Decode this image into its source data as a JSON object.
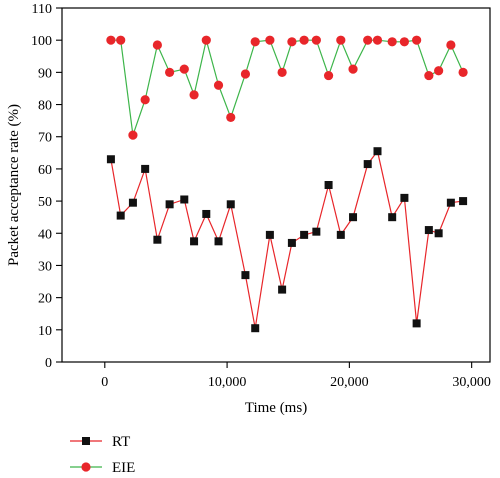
{
  "chart_data": {
    "type": "line",
    "xlabel": "Time (ms)",
    "ylabel": "Packet acceptance rate (%)",
    "xlim": [
      -3500,
      31500
    ],
    "ylim": [
      0,
      110
    ],
    "xticks": [
      0,
      10000,
      20000,
      30000
    ],
    "xtick_labels": [
      "0",
      "10,000",
      "20,000",
      "30,000"
    ],
    "yticks": [
      0,
      10,
      20,
      30,
      40,
      50,
      60,
      70,
      80,
      90,
      100,
      110
    ],
    "ytick_labels": [
      "0",
      "10",
      "20",
      "30",
      "40",
      "50",
      "60",
      "70",
      "80",
      "90",
      "100",
      "110"
    ],
    "grid": false,
    "legend_position": "bottom-left, below plot",
    "series": [
      {
        "name": "RT",
        "color": "#e8262a",
        "marker": "square",
        "marker_color": "#111111",
        "x": [
          500,
          1300,
          2300,
          3300,
          4300,
          5300,
          6500,
          7300,
          8300,
          9300,
          10300,
          11500,
          12300,
          13500,
          14500,
          15300,
          16300,
          17300,
          18300,
          19300,
          20300,
          21500,
          22300,
          23500,
          24500,
          25500,
          26500,
          27300,
          28300,
          29300
        ],
        "values": [
          63,
          45.5,
          49.5,
          60,
          38,
          49,
          50.5,
          37.5,
          46,
          37.5,
          49,
          27,
          10.5,
          39.5,
          22.5,
          37,
          39.5,
          40.5,
          55,
          39.5,
          45,
          61.5,
          65.5,
          45,
          51,
          12,
          41,
          40,
          49.5,
          50
        ]
      },
      {
        "name": "EIE",
        "color": "#3db54a",
        "marker": "circle",
        "marker_color": "#e8262a",
        "x": [
          500,
          1300,
          2300,
          3300,
          4300,
          5300,
          6500,
          7300,
          8300,
          9300,
          10300,
          11500,
          12300,
          13500,
          14500,
          15300,
          16300,
          17300,
          18300,
          19300,
          20300,
          21500,
          22300,
          23500,
          24500,
          25500,
          26500,
          27300,
          28300,
          29300
        ],
        "values": [
          100,
          100,
          70.5,
          81.5,
          98.5,
          90,
          91,
          83,
          100,
          86,
          76,
          89.5,
          99.5,
          100,
          90,
          99.5,
          100,
          100,
          89,
          100,
          91,
          100,
          100,
          99.5,
          99.5,
          100,
          89,
          90.5,
          98.5,
          90
        ]
      }
    ]
  }
}
